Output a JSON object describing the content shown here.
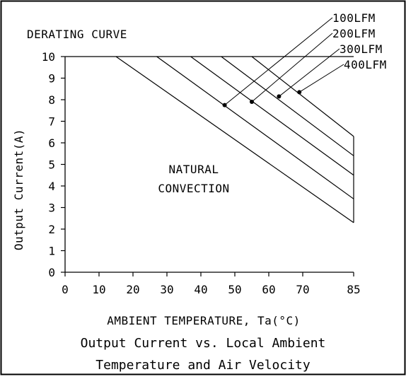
{
  "chart_data": {
    "type": "line",
    "title": "DERATING CURVE",
    "xlabel": "AMBIENT TEMPERATURE, Ta(°C)",
    "ylabel": "Output Current(A)",
    "caption_line1": "Output Current vs. Local Ambient",
    "caption_line2": "Temperature and Air Velocity",
    "annotation_line1": "NATURAL",
    "annotation_line2": "CONVECTION",
    "x_ticks": [
      0,
      10,
      20,
      30,
      40,
      50,
      60,
      70,
      85
    ],
    "x_tick_labels": [
      "0",
      "10",
      "20",
      "30",
      "40",
      "50",
      "60",
      "70",
      "85"
    ],
    "y_ticks": [
      0,
      1,
      2,
      3,
      4,
      5,
      6,
      7,
      8,
      9,
      10
    ],
    "y_tick_labels": [
      "0",
      "1",
      "2",
      "3",
      "4",
      "5",
      "6",
      "7",
      "8",
      "9",
      "10"
    ],
    "xlim": [
      0,
      85
    ],
    "ylim": [
      0,
      10
    ],
    "grid": false,
    "series": [
      {
        "name": "",
        "x": [
          15,
          85
        ],
        "y": [
          10,
          2.3
        ]
      },
      {
        "name": "",
        "x": [
          27,
          85
        ],
        "y": [
          10,
          3.4
        ]
      },
      {
        "name": "100LFM",
        "x": [
          37,
          85
        ],
        "y": [
          10,
          4.5
        ]
      },
      {
        "name": "200LFM",
        "x": [
          46,
          85
        ],
        "y": [
          10,
          5.4
        ]
      },
      {
        "name": "300LFM",
        "x": [
          55,
          85
        ],
        "y": [
          10,
          6.3
        ]
      },
      {
        "name": "400LFM",
        "x": [
          0,
          85
        ],
        "y": [
          10,
          10
        ]
      }
    ],
    "leader_points": [
      {
        "label": "100LFM",
        "x": 47,
        "y": 7.75
      },
      {
        "label": "200LFM",
        "x": 55,
        "y": 7.9
      },
      {
        "label": "300LFM",
        "x": 63,
        "y": 8.15
      },
      {
        "label": "400LFM",
        "x": 69,
        "y": 8.35
      }
    ]
  }
}
